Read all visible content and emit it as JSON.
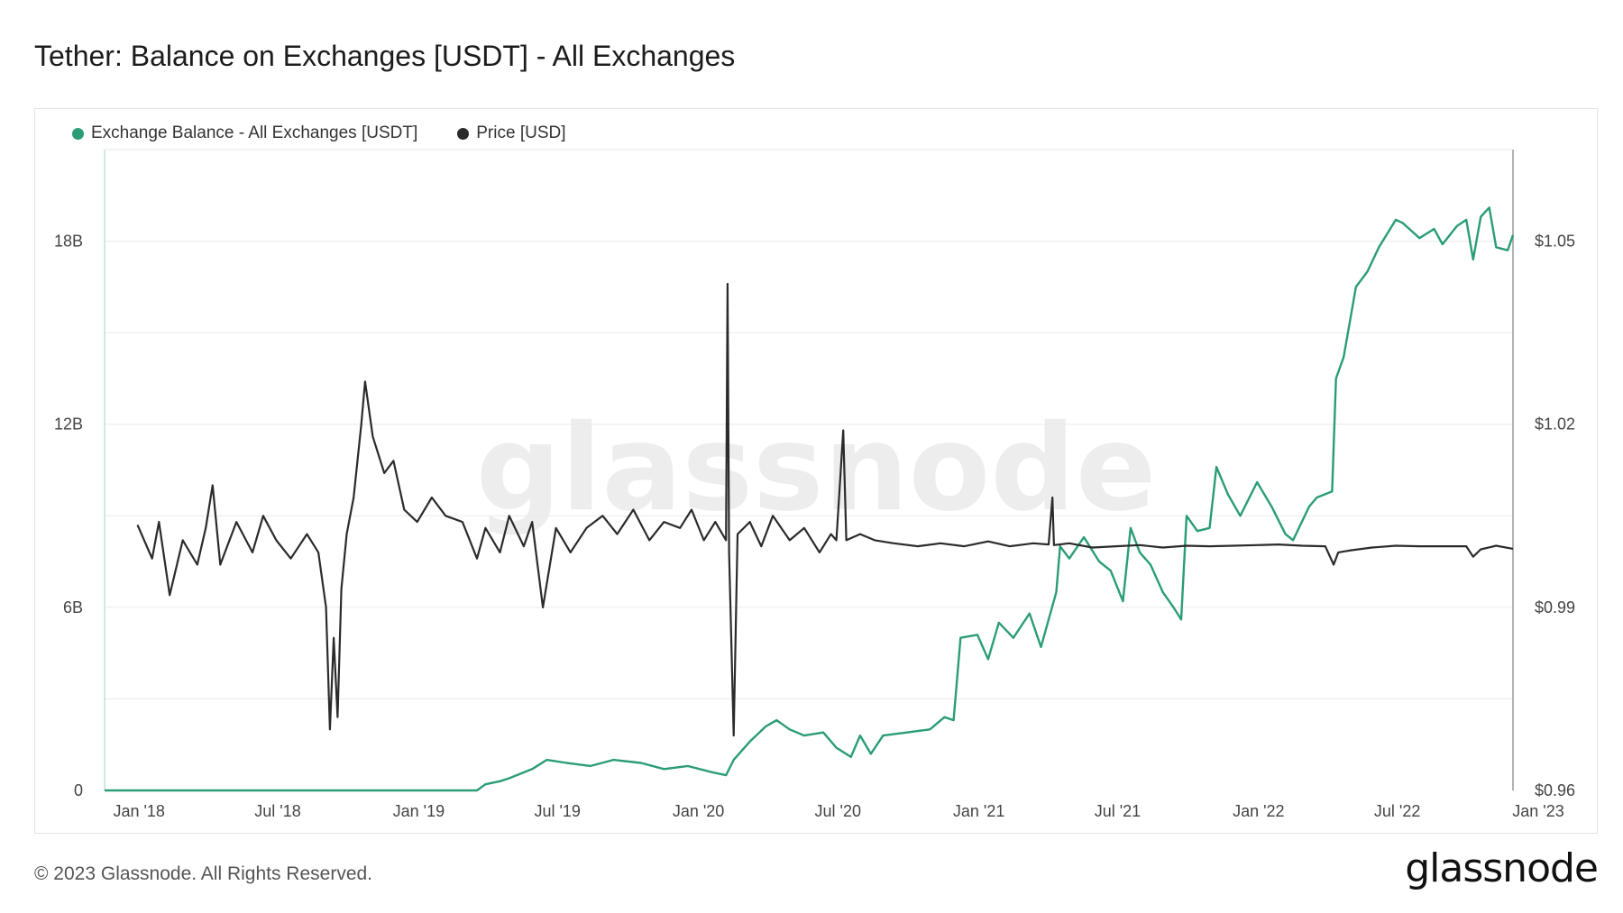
{
  "header": {
    "title": "Tether: Balance on Exchanges [USDT] - All Exchanges"
  },
  "footer": {
    "copyright": "© 2023 Glassnode. All Rights Reserved.",
    "brand": "glassnode"
  },
  "colors": {
    "balance": "#2a9d74",
    "price": "#2b2b2b",
    "grid": "#eaeaea"
  },
  "chart_data": {
    "type": "line",
    "watermark": "glassnode",
    "legend_position": "top-left",
    "grid": true,
    "x_ticks": [
      "Jan '18",
      "Jul '18",
      "Jan '19",
      "Jul '19",
      "Jan '20",
      "Jul '20",
      "Jan '21",
      "Jul '21",
      "Jan '22",
      "Jul '22",
      "Jan '23"
    ],
    "x_range": [
      "2017-12-20",
      "2023-01-01"
    ],
    "y_left": {
      "ticks": [
        "0",
        "6B",
        "12B",
        "18B"
      ],
      "range": [
        0,
        21000000000
      ]
    },
    "y_right": {
      "ticks": [
        "$0.96",
        "$0.99",
        "$1.02",
        "$1.05"
      ],
      "range": [
        0.96,
        1.065
      ]
    },
    "series": [
      {
        "name": "Exchange Balance - All Exchanges [USDT]",
        "axis": "left",
        "points": [
          [
            "2017-12-20",
            0
          ],
          [
            "2018-06-01",
            0
          ],
          [
            "2019-01-01",
            0
          ],
          [
            "2019-04-20",
            0
          ],
          [
            "2019-05-01",
            200000000
          ],
          [
            "2019-05-20",
            300000000
          ],
          [
            "2019-06-01",
            400000000
          ],
          [
            "2019-07-01",
            700000000
          ],
          [
            "2019-07-20",
            1000000000
          ],
          [
            "2019-08-15",
            900000000
          ],
          [
            "2019-09-15",
            800000000
          ],
          [
            "2019-10-15",
            1000000000
          ],
          [
            "2019-11-20",
            900000000
          ],
          [
            "2019-12-20",
            700000000
          ],
          [
            "2020-01-20",
            800000000
          ],
          [
            "2020-02-20",
            600000000
          ],
          [
            "2020-03-10",
            500000000
          ],
          [
            "2020-03-20",
            1000000000
          ],
          [
            "2020-04-10",
            1600000000
          ],
          [
            "2020-05-01",
            2100000000
          ],
          [
            "2020-05-15",
            2300000000
          ],
          [
            "2020-06-01",
            2000000000
          ],
          [
            "2020-06-20",
            1800000000
          ],
          [
            "2020-07-15",
            1900000000
          ],
          [
            "2020-08-01",
            1400000000
          ],
          [
            "2020-08-20",
            1100000000
          ],
          [
            "2020-09-01",
            1800000000
          ],
          [
            "2020-09-15",
            1200000000
          ],
          [
            "2020-10-01",
            1800000000
          ],
          [
            "2020-11-01",
            1900000000
          ],
          [
            "2020-12-01",
            2000000000
          ],
          [
            "2020-12-20",
            2400000000
          ],
          [
            "2021-01-01",
            2300000000
          ],
          [
            "2021-01-10",
            5000000000
          ],
          [
            "2021-02-01",
            5100000000
          ],
          [
            "2021-02-15",
            4300000000
          ],
          [
            "2021-03-01",
            5500000000
          ],
          [
            "2021-03-20",
            5000000000
          ],
          [
            "2021-04-10",
            5800000000
          ],
          [
            "2021-04-25",
            4700000000
          ],
          [
            "2021-05-15",
            6500000000
          ],
          [
            "2021-05-20",
            8000000000
          ],
          [
            "2021-06-01",
            7600000000
          ],
          [
            "2021-06-20",
            8300000000
          ],
          [
            "2021-07-10",
            7500000000
          ],
          [
            "2021-07-25",
            7200000000
          ],
          [
            "2021-08-10",
            6200000000
          ],
          [
            "2021-08-20",
            8600000000
          ],
          [
            "2021-09-01",
            7800000000
          ],
          [
            "2021-09-15",
            7400000000
          ],
          [
            "2021-10-01",
            6500000000
          ],
          [
            "2021-10-15",
            6000000000
          ],
          [
            "2021-10-25",
            5600000000
          ],
          [
            "2021-11-01",
            9000000000
          ],
          [
            "2021-11-15",
            8500000000
          ],
          [
            "2021-12-01",
            8600000000
          ],
          [
            "2021-12-10",
            10600000000
          ],
          [
            "2021-12-25",
            9700000000
          ],
          [
            "2022-01-10",
            9000000000
          ],
          [
            "2022-02-01",
            10100000000
          ],
          [
            "2022-02-20",
            9300000000
          ],
          [
            "2022-03-10",
            8400000000
          ],
          [
            "2022-03-20",
            8200000000
          ],
          [
            "2022-04-10",
            9300000000
          ],
          [
            "2022-04-20",
            9600000000
          ],
          [
            "2022-05-10",
            9800000000
          ],
          [
            "2022-05-15",
            13500000000
          ],
          [
            "2022-05-25",
            14200000000
          ],
          [
            "2022-06-01",
            15200000000
          ],
          [
            "2022-06-10",
            16500000000
          ],
          [
            "2022-06-25",
            17000000000
          ],
          [
            "2022-07-10",
            17800000000
          ],
          [
            "2022-08-01",
            18700000000
          ],
          [
            "2022-08-10",
            18600000000
          ],
          [
            "2022-09-01",
            18100000000
          ],
          [
            "2022-09-20",
            18400000000
          ],
          [
            "2022-10-01",
            17900000000
          ],
          [
            "2022-10-20",
            18500000000
          ],
          [
            "2022-11-01",
            18700000000
          ],
          [
            "2022-11-10",
            17400000000
          ],
          [
            "2022-11-20",
            18800000000
          ],
          [
            "2022-12-01",
            19100000000
          ],
          [
            "2022-12-10",
            17800000000
          ],
          [
            "2022-12-25",
            17700000000
          ],
          [
            "2023-01-01",
            18200000000
          ]
        ]
      },
      {
        "name": "Price [USD]",
        "axis": "right",
        "points": [
          [
            "2018-02-01",
            1.0035
          ],
          [
            "2018-02-20",
            0.998
          ],
          [
            "2018-03-01",
            1.004
          ],
          [
            "2018-03-15",
            0.992
          ],
          [
            "2018-04-01",
            1.001
          ],
          [
            "2018-04-20",
            0.997
          ],
          [
            "2018-05-01",
            1.003
          ],
          [
            "2018-05-10",
            1.01
          ],
          [
            "2018-05-20",
            0.997
          ],
          [
            "2018-06-10",
            1.004
          ],
          [
            "2018-07-01",
            0.999
          ],
          [
            "2018-07-15",
            1.005
          ],
          [
            "2018-08-01",
            1.001
          ],
          [
            "2018-08-20",
            0.998
          ],
          [
            "2018-09-10",
            1.002
          ],
          [
            "2018-09-25",
            0.999
          ],
          [
            "2018-10-05",
            0.99
          ],
          [
            "2018-10-10",
            0.97
          ],
          [
            "2018-10-15",
            0.985
          ],
          [
            "2018-10-20",
            0.972
          ],
          [
            "2018-10-25",
            0.993
          ],
          [
            "2018-11-01",
            1.002
          ],
          [
            "2018-11-10",
            1.008
          ],
          [
            "2018-11-20",
            1.02
          ],
          [
            "2018-11-25",
            1.027
          ],
          [
            "2018-12-05",
            1.018
          ],
          [
            "2018-12-20",
            1.012
          ],
          [
            "2019-01-01",
            1.014
          ],
          [
            "2019-01-15",
            1.006
          ],
          [
            "2019-02-01",
            1.004
          ],
          [
            "2019-02-20",
            1.008
          ],
          [
            "2019-03-10",
            1.005
          ],
          [
            "2019-04-01",
            1.004
          ],
          [
            "2019-04-20",
            0.998
          ],
          [
            "2019-05-01",
            1.003
          ],
          [
            "2019-05-20",
            0.999
          ],
          [
            "2019-06-01",
            1.005
          ],
          [
            "2019-06-20",
            1.0
          ],
          [
            "2019-07-01",
            1.004
          ],
          [
            "2019-07-15",
            0.99
          ],
          [
            "2019-08-01",
            1.003
          ],
          [
            "2019-08-20",
            0.999
          ],
          [
            "2019-09-10",
            1.003
          ],
          [
            "2019-10-01",
            1.005
          ],
          [
            "2019-10-20",
            1.002
          ],
          [
            "2019-11-10",
            1.006
          ],
          [
            "2019-12-01",
            1.001
          ],
          [
            "2019-12-20",
            1.004
          ],
          [
            "2020-01-10",
            1.003
          ],
          [
            "2020-01-25",
            1.006
          ],
          [
            "2020-02-10",
            1.001
          ],
          [
            "2020-02-25",
            1.004
          ],
          [
            "2020-03-10",
            1.001
          ],
          [
            "2020-03-12",
            1.043
          ],
          [
            "2020-03-14",
            0.999
          ],
          [
            "2020-03-20",
            0.969
          ],
          [
            "2020-03-25",
            1.002
          ],
          [
            "2020-04-10",
            1.004
          ],
          [
            "2020-04-25",
            1.0
          ],
          [
            "2020-05-10",
            1.005
          ],
          [
            "2020-06-01",
            1.001
          ],
          [
            "2020-06-20",
            1.003
          ],
          [
            "2020-07-10",
            0.999
          ],
          [
            "2020-07-25",
            1.002
          ],
          [
            "2020-08-01",
            1.001
          ],
          [
            "2020-08-10",
            1.019
          ],
          [
            "2020-08-14",
            1.001
          ],
          [
            "2020-09-01",
            1.002
          ],
          [
            "2020-09-20",
            1.001
          ],
          [
            "2020-10-15",
            1.0005
          ],
          [
            "2020-11-15",
            1.0
          ],
          [
            "2020-12-15",
            1.0005
          ],
          [
            "2021-01-15",
            1.0
          ],
          [
            "2021-02-15",
            1.0008
          ],
          [
            "2021-03-15",
            1.0
          ],
          [
            "2021-04-15",
            1.0005
          ],
          [
            "2021-05-05",
            1.0003
          ],
          [
            "2021-05-10",
            1.008
          ],
          [
            "2021-05-12",
            1.0002
          ],
          [
            "2021-06-01",
            1.0005
          ],
          [
            "2021-07-01",
            0.9998
          ],
          [
            "2021-08-01",
            1.0
          ],
          [
            "2021-09-01",
            1.0002
          ],
          [
            "2021-10-01",
            0.9998
          ],
          [
            "2021-11-01",
            1.0001
          ],
          [
            "2021-12-01",
            1.0
          ],
          [
            "2022-01-01",
            1.0001
          ],
          [
            "2022-02-01",
            1.0002
          ],
          [
            "2022-03-01",
            1.0003
          ],
          [
            "2022-04-01",
            1.0001
          ],
          [
            "2022-05-01",
            1.0
          ],
          [
            "2022-05-12",
            0.997
          ],
          [
            "2022-05-18",
            0.999
          ],
          [
            "2022-06-01",
            0.9993
          ],
          [
            "2022-07-01",
            0.9998
          ],
          [
            "2022-08-01",
            1.0001
          ],
          [
            "2022-09-01",
            1.0
          ],
          [
            "2022-10-01",
            1.0
          ],
          [
            "2022-11-01",
            1.0
          ],
          [
            "2022-11-10",
            0.9983
          ],
          [
            "2022-11-20",
            0.9995
          ],
          [
            "2022-12-10",
            1.0001
          ],
          [
            "2023-01-01",
            0.9996
          ]
        ]
      }
    ]
  }
}
